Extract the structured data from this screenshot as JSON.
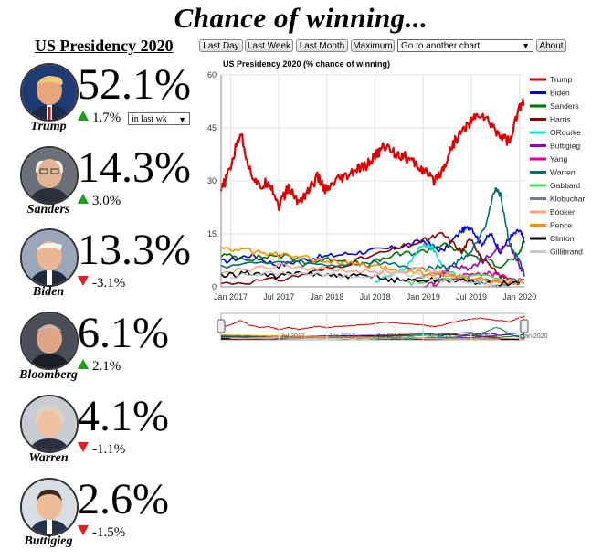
{
  "page": {
    "title": "Chance of winning..."
  },
  "sidebar": {
    "heading": "US Presidency 2020",
    "period_select": {
      "value": "in last wk"
    },
    "candidates": [
      {
        "name": "Trump",
        "pct": "52.1%",
        "change": "1.7%",
        "direction": "up"
      },
      {
        "name": "Sanders",
        "pct": "14.3%",
        "change": "3.0%",
        "direction": "up"
      },
      {
        "name": "Biden",
        "pct": "13.3%",
        "change": "-3.1%",
        "direction": "down"
      },
      {
        "name": "Bloomberg",
        "pct": "6.1%",
        "change": "2.1%",
        "direction": "up"
      },
      {
        "name": "Warren",
        "pct": "4.1%",
        "change": "-1.1%",
        "direction": "down"
      },
      {
        "name": "Buttigieg",
        "pct": "2.6%",
        "change": "-1.5%",
        "direction": "down"
      }
    ]
  },
  "toolbar": {
    "last_day": "Last Day",
    "last_week": "Last Week",
    "last_month": "Last Month",
    "maximum": "Maximum",
    "chart_select": "Go to another chart",
    "about": "About"
  },
  "chart_data": {
    "type": "line",
    "title": "US Presidency 2020 (% chance of winning)",
    "ylim": [
      0,
      60
    ],
    "yticks": [
      "0",
      "15",
      "30",
      "45",
      "60"
    ],
    "xticks": [
      "Jan 2017",
      "Jul 2017",
      "Jan 2018",
      "Jul 2018",
      "Jan 2019",
      "Jul 2019",
      "Jan 2020"
    ],
    "navigator_ticks": [
      "Jul 2017",
      "Jan 2018",
      "Jul 2018",
      "Jan 2019",
      "Jul 2019",
      "Jan 2020"
    ],
    "x_years": [
      2016.9,
      2020.05
    ],
    "series": [
      {
        "name": "Trump",
        "color": "#e00000",
        "points": [
          [
            2016.9,
            27
          ],
          [
            2017.0,
            34
          ],
          [
            2017.1,
            44
          ],
          [
            2017.2,
            33
          ],
          [
            2017.3,
            28
          ],
          [
            2017.4,
            30
          ],
          [
            2017.5,
            23
          ],
          [
            2017.6,
            28
          ],
          [
            2017.7,
            24
          ],
          [
            2017.8,
            27
          ],
          [
            2017.9,
            31
          ],
          [
            2018.0,
            27
          ],
          [
            2018.1,
            30
          ],
          [
            2018.2,
            31
          ],
          [
            2018.3,
            33
          ],
          [
            2018.4,
            34
          ],
          [
            2018.5,
            37
          ],
          [
            2018.6,
            40
          ],
          [
            2018.7,
            38
          ],
          [
            2018.8,
            37
          ],
          [
            2018.9,
            35
          ],
          [
            2019.0,
            33
          ],
          [
            2019.1,
            30
          ],
          [
            2019.2,
            33
          ],
          [
            2019.3,
            40
          ],
          [
            2019.4,
            44
          ],
          [
            2019.5,
            47
          ],
          [
            2019.6,
            49
          ],
          [
            2019.7,
            46
          ],
          [
            2019.8,
            43
          ],
          [
            2019.9,
            41
          ],
          [
            2020.0,
            51
          ],
          [
            2020.05,
            52
          ]
        ]
      },
      {
        "name": "Biden",
        "color": "#0000e0",
        "points": [
          [
            2016.9,
            7
          ],
          [
            2017.2,
            9
          ],
          [
            2017.5,
            6
          ],
          [
            2017.8,
            8
          ],
          [
            2018.1,
            9
          ],
          [
            2018.4,
            10
          ],
          [
            2018.7,
            11
          ],
          [
            2019.0,
            13
          ],
          [
            2019.2,
            10
          ],
          [
            2019.4,
            16
          ],
          [
            2019.5,
            17
          ],
          [
            2019.6,
            12
          ],
          [
            2019.7,
            15
          ],
          [
            2019.8,
            10
          ],
          [
            2019.9,
            14
          ],
          [
            2020.0,
            16
          ],
          [
            2020.05,
            13
          ]
        ]
      },
      {
        "name": "Sanders",
        "color": "#007000",
        "points": [
          [
            2016.9,
            9
          ],
          [
            2017.2,
            8
          ],
          [
            2017.5,
            9
          ],
          [
            2017.8,
            7
          ],
          [
            2018.1,
            8
          ],
          [
            2018.4,
            6
          ],
          [
            2018.7,
            9
          ],
          [
            2019.0,
            10
          ],
          [
            2019.2,
            12
          ],
          [
            2019.4,
            10
          ],
          [
            2019.6,
            8
          ],
          [
            2019.8,
            6
          ],
          [
            2020.0,
            9
          ],
          [
            2020.05,
            14
          ]
        ]
      },
      {
        "name": "Harris",
        "color": "#8b0000",
        "points": [
          [
            2016.9,
            1
          ],
          [
            2017.5,
            2
          ],
          [
            2018.0,
            5
          ],
          [
            2018.5,
            9
          ],
          [
            2019.0,
            13
          ],
          [
            2019.2,
            15
          ],
          [
            2019.4,
            10
          ],
          [
            2019.5,
            14
          ],
          [
            2019.6,
            8
          ],
          [
            2019.8,
            3
          ],
          [
            2020.0,
            1
          ]
        ]
      },
      {
        "name": "ORourke",
        "color": "#00e0e0",
        "points": [
          [
            2018.5,
            1
          ],
          [
            2018.8,
            5
          ],
          [
            2019.0,
            12
          ],
          [
            2019.1,
            11
          ],
          [
            2019.2,
            6
          ],
          [
            2019.4,
            2
          ],
          [
            2019.6,
            1
          ]
        ]
      },
      {
        "name": "Buttigieg",
        "color": "#9000c0",
        "points": [
          [
            2019.1,
            1
          ],
          [
            2019.3,
            6
          ],
          [
            2019.5,
            5
          ],
          [
            2019.7,
            9
          ],
          [
            2019.9,
            12
          ],
          [
            2020.0,
            6
          ],
          [
            2020.05,
            3
          ]
        ]
      },
      {
        "name": "Yang",
        "color": "#e000a0",
        "points": [
          [
            2019.0,
            0
          ],
          [
            2019.3,
            2
          ],
          [
            2019.6,
            4
          ],
          [
            2019.8,
            3
          ],
          [
            2020.05,
            2
          ]
        ]
      },
      {
        "name": "Warren",
        "color": "#007070",
        "points": [
          [
            2016.9,
            6
          ],
          [
            2017.5,
            7
          ],
          [
            2018.0,
            6
          ],
          [
            2018.5,
            7
          ],
          [
            2019.0,
            5
          ],
          [
            2019.3,
            6
          ],
          [
            2019.5,
            10
          ],
          [
            2019.65,
            18
          ],
          [
            2019.75,
            28
          ],
          [
            2019.8,
            26
          ],
          [
            2019.9,
            12
          ],
          [
            2020.0,
            7
          ],
          [
            2020.05,
            4
          ]
        ]
      },
      {
        "name": "Gabbard",
        "color": "#40e060",
        "points": [
          [
            2018.8,
            1
          ],
          [
            2019.2,
            2
          ],
          [
            2019.6,
            3
          ],
          [
            2020.05,
            1
          ]
        ]
      },
      {
        "name": "Klobuchar",
        "color": "#708090",
        "points": [
          [
            2018.9,
            2
          ],
          [
            2019.2,
            4
          ],
          [
            2019.5,
            2
          ],
          [
            2019.9,
            1
          ],
          [
            2020.05,
            2
          ]
        ]
      },
      {
        "name": "Booker",
        "color": "#ffa080",
        "points": [
          [
            2016.9,
            4
          ],
          [
            2017.5,
            6
          ],
          [
            2018.0,
            5
          ],
          [
            2018.5,
            4
          ],
          [
            2019.0,
            5
          ],
          [
            2019.3,
            3
          ],
          [
            2019.6,
            2
          ],
          [
            2020.0,
            1
          ]
        ]
      },
      {
        "name": "Pence",
        "color": "#ff9000",
        "points": [
          [
            2016.9,
            11
          ],
          [
            2017.2,
            10
          ],
          [
            2017.5,
            9
          ],
          [
            2017.8,
            8
          ],
          [
            2018.1,
            7
          ],
          [
            2018.4,
            6
          ],
          [
            2018.7,
            5
          ],
          [
            2019.0,
            4
          ],
          [
            2019.3,
            3
          ],
          [
            2019.6,
            2
          ],
          [
            2020.05,
            1
          ]
        ]
      },
      {
        "name": "Clinton",
        "color": "#000000",
        "points": [
          [
            2016.9,
            3
          ],
          [
            2017.2,
            4
          ],
          [
            2017.5,
            3
          ],
          [
            2017.8,
            4
          ],
          [
            2018.1,
            3
          ],
          [
            2018.4,
            3
          ],
          [
            2018.7,
            2
          ],
          [
            2019.0,
            2
          ],
          [
            2019.3,
            2
          ],
          [
            2019.6,
            1
          ],
          [
            2020.0,
            1
          ]
        ]
      },
      {
        "name": "Gillibrand",
        "color": "#c8c8c8",
        "points": [
          [
            2017.0,
            3
          ],
          [
            2017.6,
            4
          ],
          [
            2018.2,
            3
          ],
          [
            2018.8,
            4
          ],
          [
            2019.2,
            2
          ],
          [
            2019.6,
            1
          ],
          [
            2019.8,
            0
          ]
        ]
      }
    ]
  }
}
